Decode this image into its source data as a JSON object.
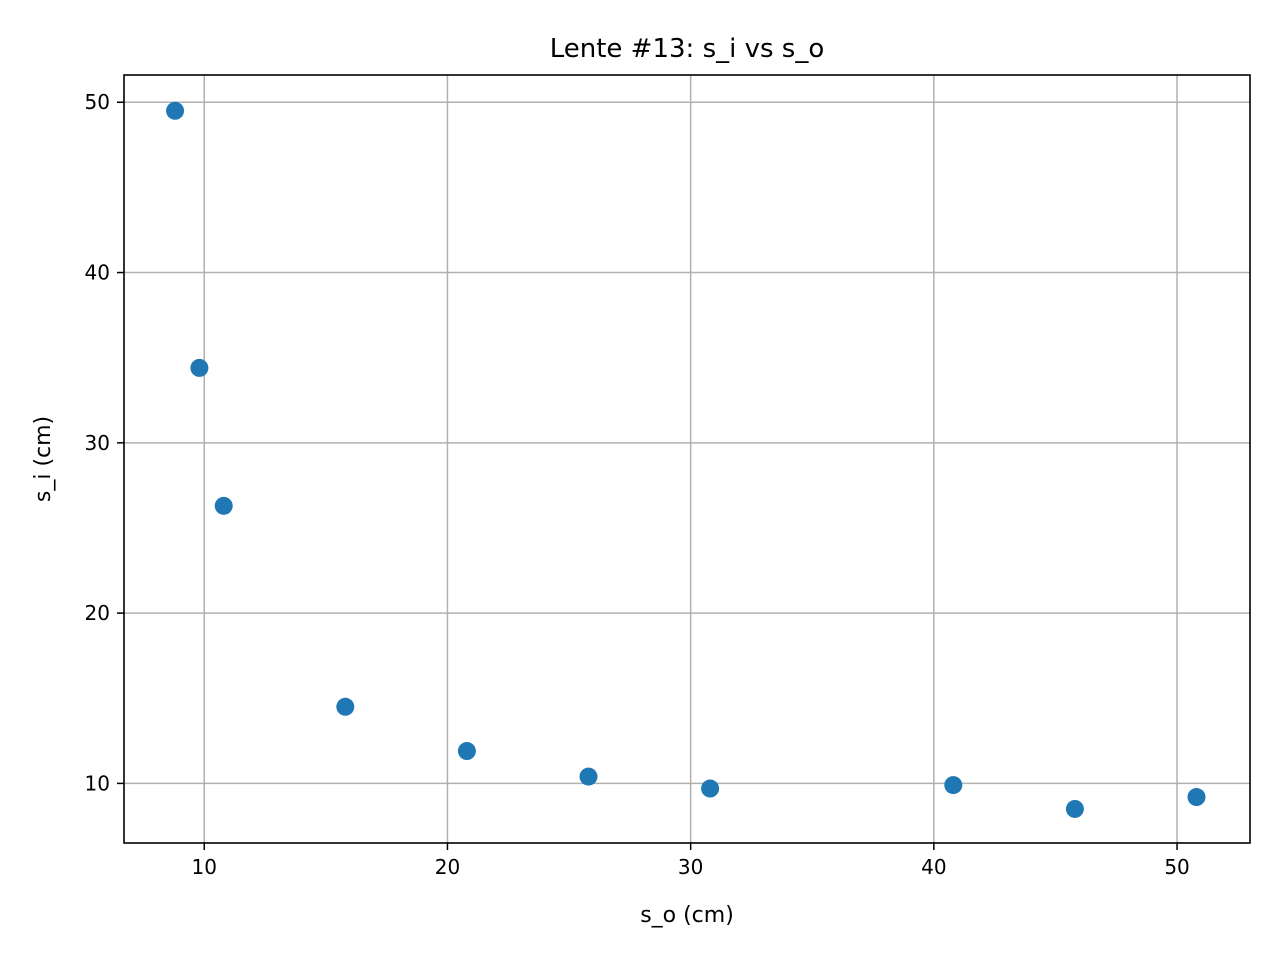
{
  "chart_data": {
    "type": "scatter",
    "title": "Lente #13: s_i vs s_o",
    "xlabel": "s_o (cm)",
    "ylabel": "s_i (cm)",
    "xlim": [
      6.7,
      53.0
    ],
    "ylim": [
      6.5,
      51.6
    ],
    "xticks": [
      10,
      20,
      30,
      40,
      50
    ],
    "yticks": [
      10,
      20,
      30,
      40,
      50
    ],
    "grid": true,
    "legend": "none",
    "marker_color": "#1f77b4",
    "points": [
      {
        "x": 8.8,
        "y": 49.5
      },
      {
        "x": 9.8,
        "y": 34.4
      },
      {
        "x": 10.8,
        "y": 26.3
      },
      {
        "x": 15.8,
        "y": 14.5
      },
      {
        "x": 20.8,
        "y": 11.9
      },
      {
        "x": 25.8,
        "y": 10.4
      },
      {
        "x": 30.8,
        "y": 9.7
      },
      {
        "x": 40.8,
        "y": 9.9
      },
      {
        "x": 45.8,
        "y": 8.5
      },
      {
        "x": 50.8,
        "y": 9.2
      }
    ]
  }
}
